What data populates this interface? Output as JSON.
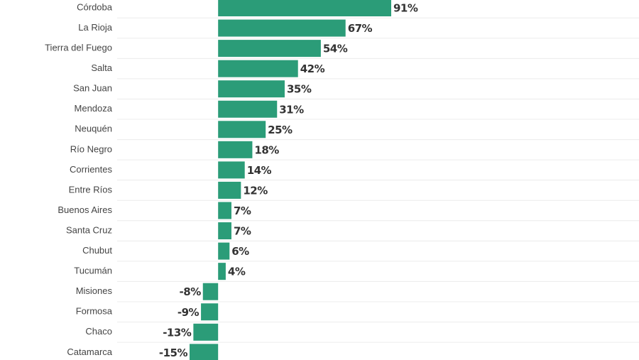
{
  "chart_data": {
    "type": "bar",
    "orientation": "horizontal",
    "categories": [
      "Córdoba",
      "La Rioja",
      "Tierra del Fuego",
      "Salta",
      "San Juan",
      "Mendoza",
      "Neuquén",
      "Río Negro",
      "Corrientes",
      "Entre Ríos",
      "Buenos Aires",
      "Santa Cruz",
      "Chubut",
      "Tucumán",
      "Misiones",
      "Formosa",
      "Chaco",
      "Catamarca"
    ],
    "values": [
      91,
      67,
      54,
      42,
      35,
      31,
      25,
      18,
      14,
      12,
      7,
      7,
      6,
      4,
      -8,
      -9,
      -13,
      -15
    ],
    "value_labels": [
      "91%",
      "67%",
      "54%",
      "42%",
      "35%",
      "31%",
      "25%",
      "18%",
      "14%",
      "12%",
      "7%",
      "7%",
      "6%",
      "4%",
      "-8%",
      "-9%",
      "-13%",
      "-15%"
    ],
    "color": "#2b9c78",
    "xlim": [
      -15,
      91
    ]
  }
}
